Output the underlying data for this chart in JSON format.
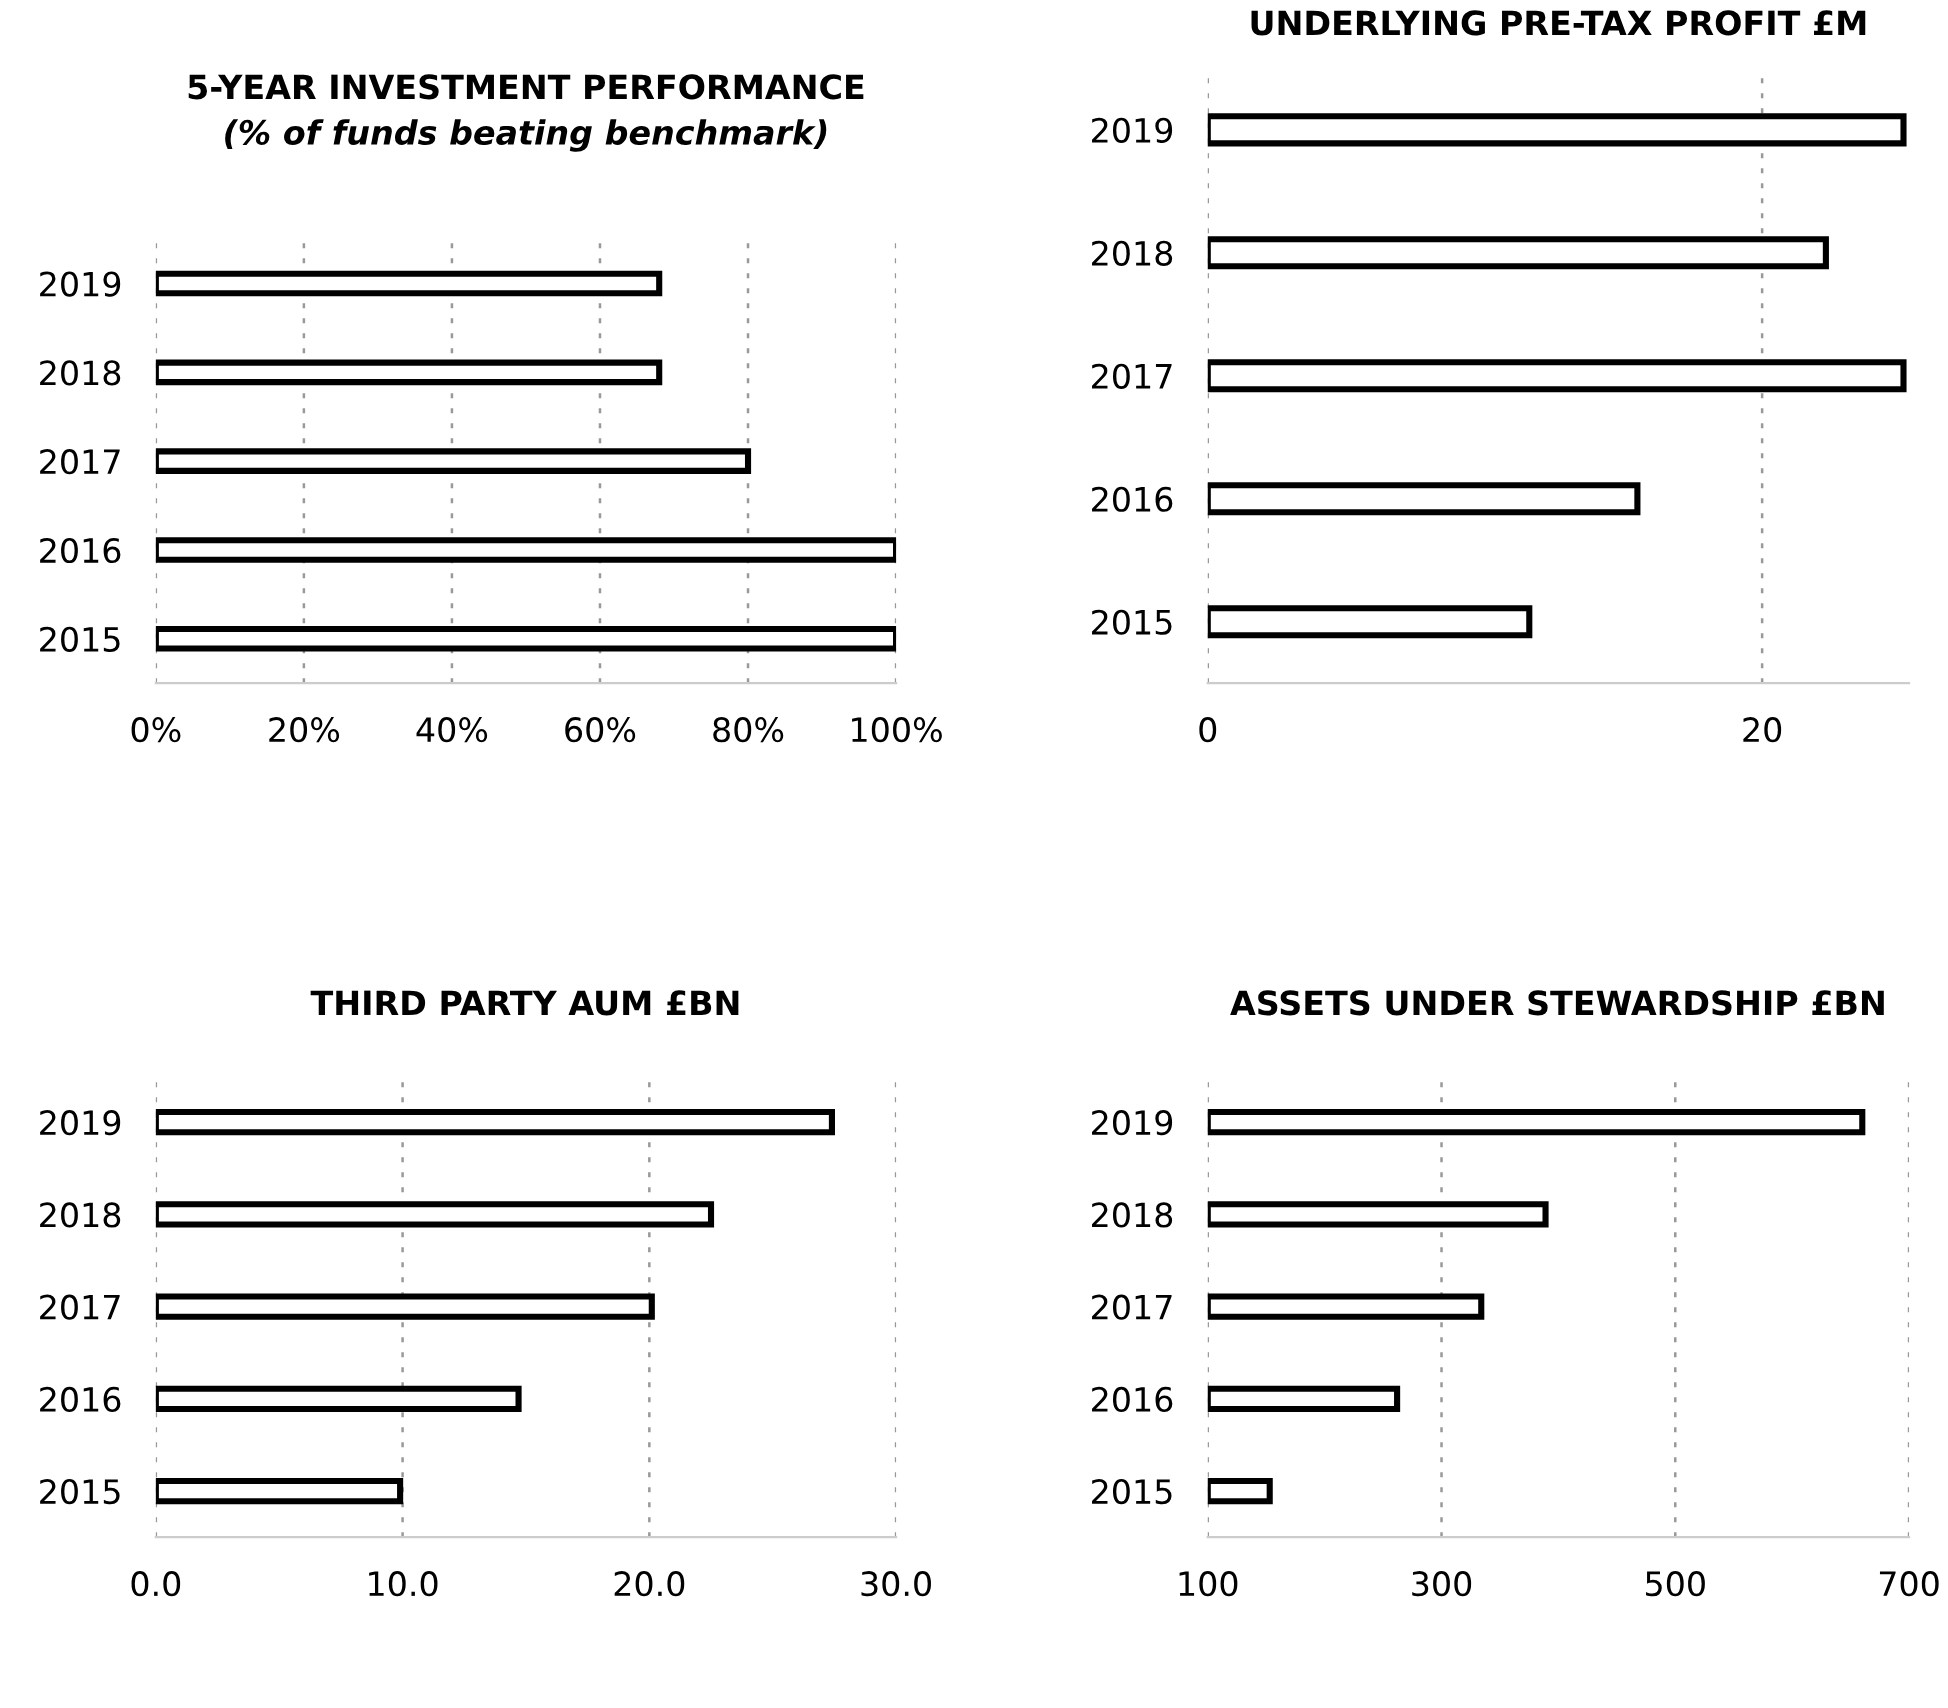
{
  "chart_data": [
    {
      "type": "bar",
      "orientation": "horizontal",
      "title": "5-YEAR INVESTMENT PERFORMANCE",
      "subtitle": "(% of funds beating benchmark)",
      "categories": [
        "2019",
        "2018",
        "2017",
        "2016",
        "2015"
      ],
      "values": [
        68,
        68,
        80,
        100,
        100
      ],
      "color": "#ffffff",
      "xlim": [
        0,
        100
      ],
      "xticks": [
        {
          "value": 0,
          "label": "0%"
        },
        {
          "value": 20,
          "label": "20%"
        },
        {
          "value": 40,
          "label": "40%"
        },
        {
          "value": 60,
          "label": "60%"
        },
        {
          "value": 80,
          "label": "80%"
        },
        {
          "value": 100,
          "label": "100%"
        }
      ],
      "grid": "x"
    },
    {
      "type": "bar",
      "orientation": "horizontal",
      "title": "UNDERLYING PRE-TAX PROFIT £M",
      "categories": [
        "2019",
        "2018",
        "2017",
        "2016",
        "2015"
      ],
      "values": [
        25.1,
        22.3,
        25.1,
        15.5,
        11.6
      ],
      "color": "#ffffff",
      "xlim": [
        0,
        25.3
      ],
      "xticks": [
        0,
        20
      ],
      "grid": "x"
    },
    {
      "type": "bar",
      "orientation": "horizontal",
      "title": "THIRD PARTY AUM £BN",
      "categories": [
        "2019",
        "2018",
        "2017",
        "2016",
        "2015"
      ],
      "values": [
        27.4,
        22.5,
        20.1,
        14.7,
        9.9
      ],
      "color": "#ffffff",
      "xlim": [
        0,
        30
      ],
      "xticks": [
        {
          "value": 0,
          "label": "0.0"
        },
        {
          "value": 10,
          "label": "10.0"
        },
        {
          "value": 20,
          "label": "20.0"
        },
        {
          "value": 30,
          "label": "30.0"
        }
      ],
      "grid": "x"
    },
    {
      "type": "bar",
      "orientation": "horizontal",
      "title": "ASSETS UNDER STEWARDSHIP £BN",
      "categories": [
        "2019",
        "2018",
        "2017",
        "2016",
        "2015"
      ],
      "values": [
        660,
        389,
        334,
        262,
        153
      ],
      "color": "#ffffff",
      "xlim": [
        100,
        700
      ],
      "xticks": [
        100,
        300,
        500,
        700
      ],
      "grid": "x"
    }
  ]
}
